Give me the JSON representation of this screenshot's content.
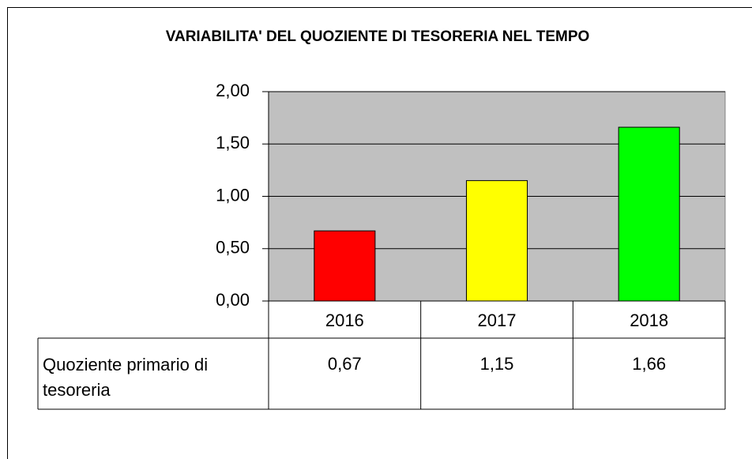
{
  "chart_data": {
    "type": "bar",
    "title": "VARIABILITA' DEL QUOZIENTE DI TESORERIA NEL TEMPO",
    "categories": [
      "2016",
      "2017",
      "2018"
    ],
    "series": [
      {
        "name": "Quoziente primario di tesoreria",
        "colors": [
          "#ff0000",
          "#ffff00",
          "#00ff00"
        ],
        "values": [
          0.67,
          1.15,
          1.66
        ],
        "value_labels": [
          "0,67",
          "1,15",
          "1,66"
        ]
      }
    ],
    "ylim": [
      0,
      2
    ],
    "yticks": [
      {
        "value": 0,
        "label": "0,00"
      },
      {
        "value": 0.5,
        "label": "0,50"
      },
      {
        "value": 1,
        "label": "1,00"
      },
      {
        "value": 1.5,
        "label": "1,50"
      },
      {
        "value": 2,
        "label": "2,00"
      }
    ],
    "grid": true,
    "plot_background": "#c0c0c0"
  }
}
